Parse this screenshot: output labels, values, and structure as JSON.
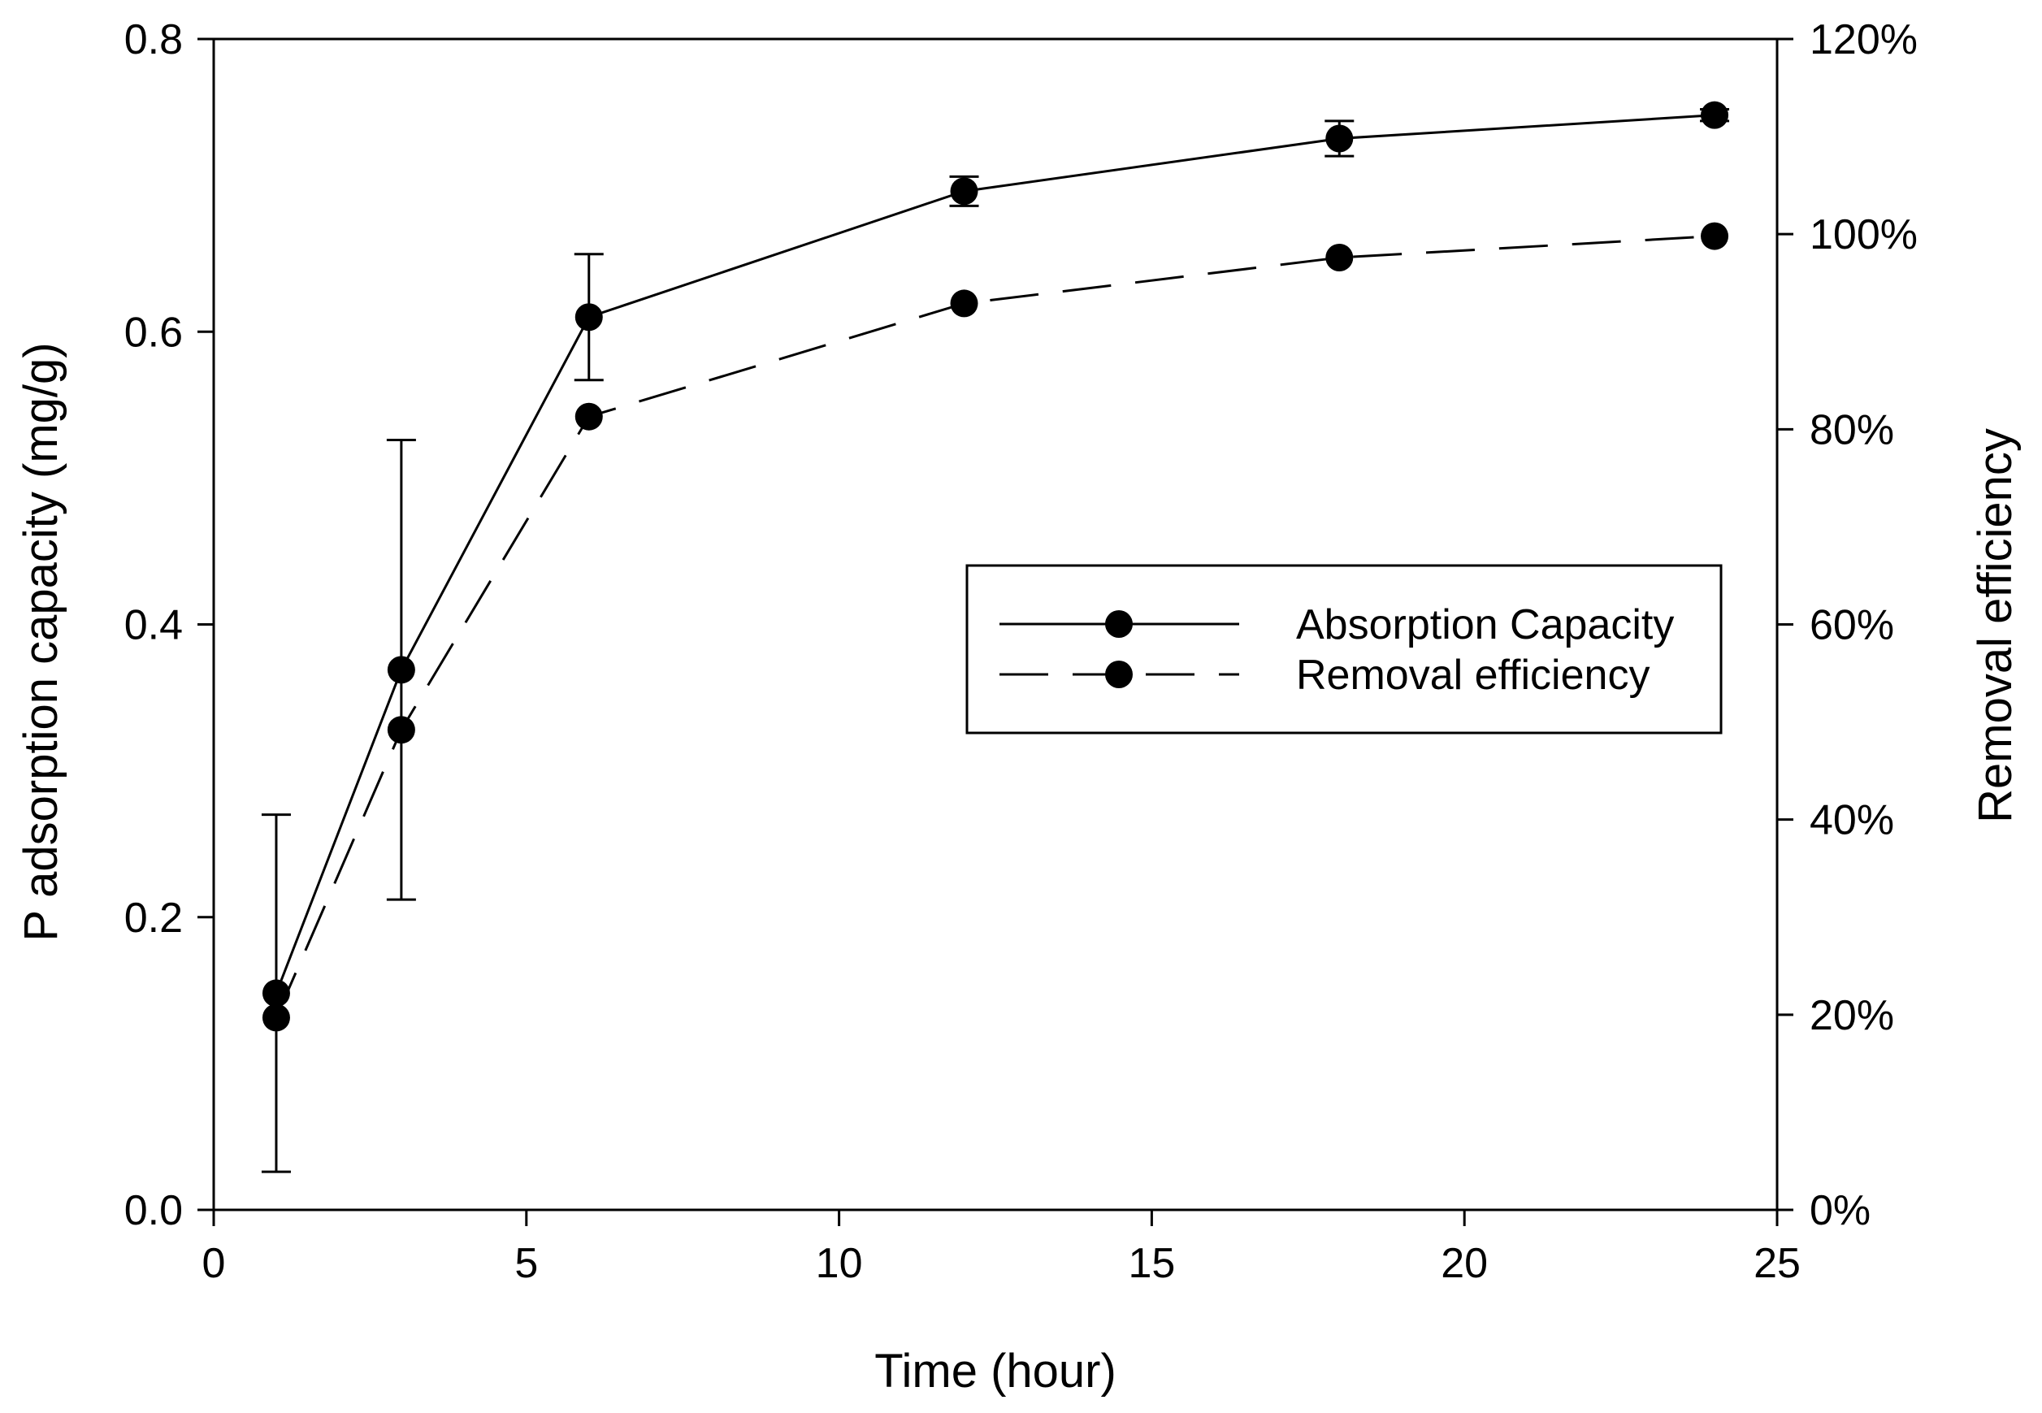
{
  "chart_data": {
    "type": "line",
    "xlabel": "Time (hour)",
    "ylabel": "P adsorption capacity (mg/g)",
    "y2label": "Removal efficiency",
    "xlim": [
      0,
      25
    ],
    "ylim": [
      0,
      0.8
    ],
    "y2lim": [
      0,
      1.2
    ],
    "x_ticks": [
      0,
      5,
      10,
      15,
      20,
      25
    ],
    "y_ticks": [
      0,
      0.2,
      0.4,
      0.6,
      0.8
    ],
    "y_tick_labels": [
      "0.0",
      "0.2",
      "0.4",
      "0.6",
      "0.8"
    ],
    "y2_ticks": [
      0,
      0.2,
      0.4,
      0.6,
      0.8,
      1.0,
      1.2
    ],
    "y2_tick_labels": [
      "0%",
      "20%",
      "40%",
      "60%",
      "80%",
      "100%",
      "120%"
    ],
    "legend_position": "center-right",
    "grid": false,
    "series": [
      {
        "name": "Absorption Capacity",
        "axis": "left",
        "line_style": "solid",
        "x": [
          1,
          3,
          6,
          12,
          18,
          24
        ],
        "y": [
          0.148,
          0.369,
          0.61,
          0.696,
          0.732,
          0.748
        ],
        "error": [
          0.122,
          0.157,
          0.043,
          0.01,
          0.012,
          0.004
        ]
      },
      {
        "name": "Removal efficiency",
        "axis": "right",
        "line_style": "dashed",
        "x": [
          1,
          3,
          6,
          12,
          18,
          24
        ],
        "y": [
          0.197,
          0.492,
          0.813,
          0.929,
          0.976,
          0.998
        ]
      }
    ]
  }
}
